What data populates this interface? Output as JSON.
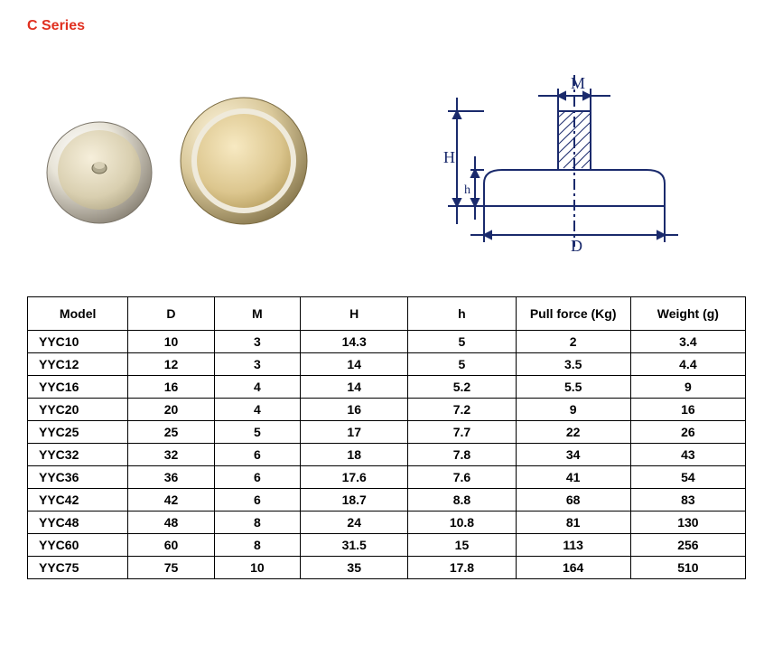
{
  "title": "C Series",
  "diagramLabels": {
    "M": "M",
    "H": "H",
    "h": "h",
    "D": "D"
  },
  "table": {
    "columns": [
      "Model",
      "D",
      "M",
      "H",
      "h",
      "Pull force (Kg)",
      "Weight (g)"
    ],
    "rows": [
      [
        "YYC10",
        "10",
        "3",
        "14.3",
        "5",
        "2",
        "3.4"
      ],
      [
        "YYC12",
        "12",
        "3",
        "14",
        "5",
        "3.5",
        "4.4"
      ],
      [
        "YYC16",
        "16",
        "4",
        "14",
        "5.2",
        "5.5",
        "9"
      ],
      [
        "YYC20",
        "20",
        "4",
        "16",
        "7.2",
        "9",
        "16"
      ],
      [
        "YYC25",
        "25",
        "5",
        "17",
        "7.7",
        "22",
        "26"
      ],
      [
        "YYC32",
        "32",
        "6",
        "18",
        "7.8",
        "34",
        "43"
      ],
      [
        "YYC36",
        "36",
        "6",
        "17.6",
        "7.6",
        "41",
        "54"
      ],
      [
        "YYC42",
        "42",
        "6",
        "18.7",
        "8.8",
        "68",
        "83"
      ],
      [
        "YYC48",
        "48",
        "8",
        "24",
        "10.8",
        "81",
        "130"
      ],
      [
        "YYC60",
        "60",
        "8",
        "31.5",
        "15",
        "113",
        "256"
      ],
      [
        "YYC75",
        "75",
        "10",
        "35",
        "17.8",
        "164",
        "510"
      ]
    ]
  }
}
